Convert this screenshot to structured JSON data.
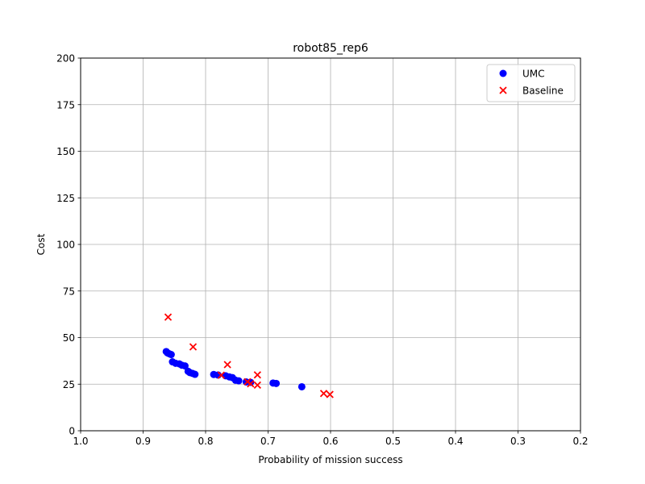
{
  "chart_data": {
    "type": "scatter",
    "title": "robot85_rep6",
    "xlabel": "Probability of mission success",
    "ylabel": "Cost",
    "xlim": [
      1.0,
      0.2
    ],
    "ylim": [
      0,
      200
    ],
    "x_inverted": true,
    "grid": true,
    "legend_position": "top-right",
    "xticks": [
      "1.0",
      "0.9",
      "0.8",
      "0.7",
      "0.6",
      "0.5",
      "0.4",
      "0.3",
      "0.2"
    ],
    "xtick_values": [
      1.0,
      0.9,
      0.8,
      0.7,
      0.6,
      0.5,
      0.4,
      0.3,
      0.2
    ],
    "yticks": [
      "0",
      "25",
      "50",
      "75",
      "100",
      "125",
      "150",
      "175",
      "200"
    ],
    "ytick_values": [
      0,
      25,
      50,
      75,
      100,
      125,
      150,
      175,
      200
    ],
    "series": [
      {
        "name": "UMC",
        "marker": "circle",
        "color": "#0000ff",
        "points": [
          [
            0.863,
            42.5
          ],
          [
            0.861,
            41.8
          ],
          [
            0.858,
            41.3
          ],
          [
            0.855,
            40.9
          ],
          [
            0.853,
            37.0
          ],
          [
            0.848,
            36.2
          ],
          [
            0.842,
            35.9
          ],
          [
            0.838,
            35.2
          ],
          [
            0.833,
            34.8
          ],
          [
            0.828,
            31.9
          ],
          [
            0.825,
            31.2
          ],
          [
            0.821,
            30.8
          ],
          [
            0.817,
            30.3
          ],
          [
            0.787,
            30.2
          ],
          [
            0.78,
            29.9
          ],
          [
            0.768,
            29.5
          ],
          [
            0.762,
            28.9
          ],
          [
            0.757,
            28.5
          ],
          [
            0.752,
            27.1
          ],
          [
            0.747,
            26.8
          ],
          [
            0.735,
            26.2
          ],
          [
            0.728,
            26.0
          ],
          [
            0.692,
            25.6
          ],
          [
            0.687,
            25.4
          ],
          [
            0.646,
            23.6
          ]
        ]
      },
      {
        "name": "Baseline",
        "marker": "x",
        "color": "#ff0000",
        "points": [
          [
            0.86,
            61.0
          ],
          [
            0.82,
            45.0
          ],
          [
            0.765,
            35.5
          ],
          [
            0.775,
            29.8
          ],
          [
            0.717,
            30.0
          ],
          [
            0.733,
            26.3
          ],
          [
            0.728,
            25.2
          ],
          [
            0.717,
            24.5
          ],
          [
            0.611,
            20.0
          ],
          [
            0.601,
            19.5
          ]
        ]
      }
    ]
  }
}
